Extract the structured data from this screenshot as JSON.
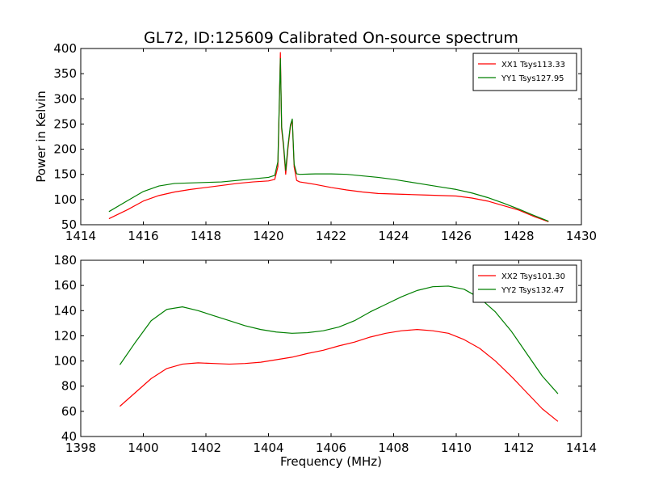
{
  "figure": {
    "title": "GL72, ID:125609 Calibrated On-source spectrum"
  },
  "chart_data": [
    {
      "type": "line",
      "title": "GL72, ID:125609 Calibrated On-source spectrum",
      "xlabel": "",
      "ylabel": "Power in Kelvin",
      "xlim": [
        1414,
        1430
      ],
      "ylim": [
        50,
        400
      ],
      "xticks": [
        1414,
        1416,
        1418,
        1420,
        1422,
        1424,
        1426,
        1428,
        1430
      ],
      "yticks": [
        50,
        100,
        150,
        200,
        250,
        300,
        350,
        400
      ],
      "grid": false,
      "legend": "top-right",
      "series": [
        {
          "name": "XX1 Tsys113.33",
          "color": "#ff0000",
          "x": [
            1414.9,
            1415.5,
            1416.0,
            1416.5,
            1417.0,
            1417.5,
            1418.0,
            1418.5,
            1419.0,
            1419.5,
            1420.0,
            1420.2,
            1420.3,
            1420.35,
            1420.38,
            1420.42,
            1420.48,
            1420.55,
            1420.62,
            1420.7,
            1420.76,
            1420.82,
            1420.9,
            1421.0,
            1421.5,
            1422.0,
            1422.5,
            1423.0,
            1423.5,
            1424.0,
            1424.5,
            1425.0,
            1425.5,
            1426.0,
            1426.5,
            1427.0,
            1427.5,
            1428.0,
            1428.5,
            1428.95
          ],
          "y": [
            62,
            80,
            97,
            108,
            115,
            120,
            124,
            128,
            132,
            135,
            137,
            140,
            165,
            300,
            392,
            240,
            205,
            150,
            200,
            245,
            258,
            165,
            138,
            135,
            130,
            124,
            119,
            115,
            112,
            111,
            110,
            109,
            108,
            107,
            103,
            97,
            88,
            79,
            66,
            56
          ]
        },
        {
          "name": "YY1 Tsys127.95",
          "color": "#007f00",
          "x": [
            1414.9,
            1415.5,
            1416.0,
            1416.5,
            1417.0,
            1417.5,
            1418.0,
            1418.5,
            1419.0,
            1419.5,
            1420.0,
            1420.2,
            1420.3,
            1420.35,
            1420.38,
            1420.42,
            1420.48,
            1420.55,
            1420.62,
            1420.7,
            1420.76,
            1420.82,
            1420.9,
            1421.0,
            1421.5,
            1422.0,
            1422.5,
            1423.0,
            1423.5,
            1424.0,
            1424.5,
            1425.0,
            1425.5,
            1426.0,
            1426.5,
            1427.0,
            1427.5,
            1428.0,
            1428.5,
            1428.95
          ],
          "y": [
            76,
            98,
            116,
            127,
            132,
            133,
            134,
            135,
            138,
            141,
            144,
            148,
            175,
            305,
            380,
            245,
            210,
            158,
            205,
            248,
            260,
            170,
            151,
            150,
            151,
            151,
            150,
            147,
            144,
            140,
            135,
            130,
            125,
            120,
            113,
            104,
            93,
            81,
            68,
            57
          ]
        }
      ]
    },
    {
      "type": "line",
      "title": "",
      "xlabel": "Frequency (MHz)",
      "ylabel": "",
      "xlim": [
        1398,
        1414
      ],
      "ylim": [
        40,
        180
      ],
      "xticks": [
        1398,
        1400,
        1402,
        1404,
        1406,
        1408,
        1410,
        1412,
        1414
      ],
      "yticks": [
        40,
        60,
        80,
        100,
        120,
        140,
        160,
        180
      ],
      "grid": false,
      "legend": "top-right",
      "series": [
        {
          "name": "XX2 Tsys101.30",
          "color": "#ff0000",
          "x": [
            1399.25,
            1399.75,
            1400.25,
            1400.75,
            1401.25,
            1401.75,
            1402.25,
            1402.75,
            1403.25,
            1403.75,
            1404.25,
            1404.75,
            1405.25,
            1405.75,
            1406.25,
            1406.75,
            1407.25,
            1407.75,
            1408.25,
            1408.75,
            1409.25,
            1409.75,
            1410.25,
            1410.75,
            1411.25,
            1411.75,
            1412.25,
            1412.75,
            1413.25
          ],
          "y": [
            64,
            75,
            86,
            94,
            97.5,
            98.5,
            98,
            97.5,
            98,
            99,
            101,
            103,
            106,
            108.5,
            112,
            115,
            119,
            122,
            124,
            125,
            124,
            122,
            117,
            110,
            100,
            88,
            75,
            62,
            52
          ]
        },
        {
          "name": "YY2 Tsys132.47",
          "color": "#007f00",
          "x": [
            1399.25,
            1399.75,
            1400.25,
            1400.75,
            1401.25,
            1401.75,
            1402.25,
            1402.75,
            1403.25,
            1403.75,
            1404.25,
            1404.75,
            1405.25,
            1405.75,
            1406.25,
            1406.75,
            1407.25,
            1407.75,
            1408.25,
            1408.75,
            1409.25,
            1409.75,
            1410.25,
            1410.75,
            1411.25,
            1411.75,
            1412.25,
            1412.75,
            1413.25
          ],
          "y": [
            97,
            115,
            132,
            141,
            143,
            140,
            136,
            132,
            128,
            125,
            123,
            122,
            122.5,
            124,
            127,
            132,
            139,
            145,
            151,
            156,
            159,
            159.5,
            157,
            150,
            139,
            124,
            106,
            88,
            74
          ]
        }
      ]
    }
  ]
}
